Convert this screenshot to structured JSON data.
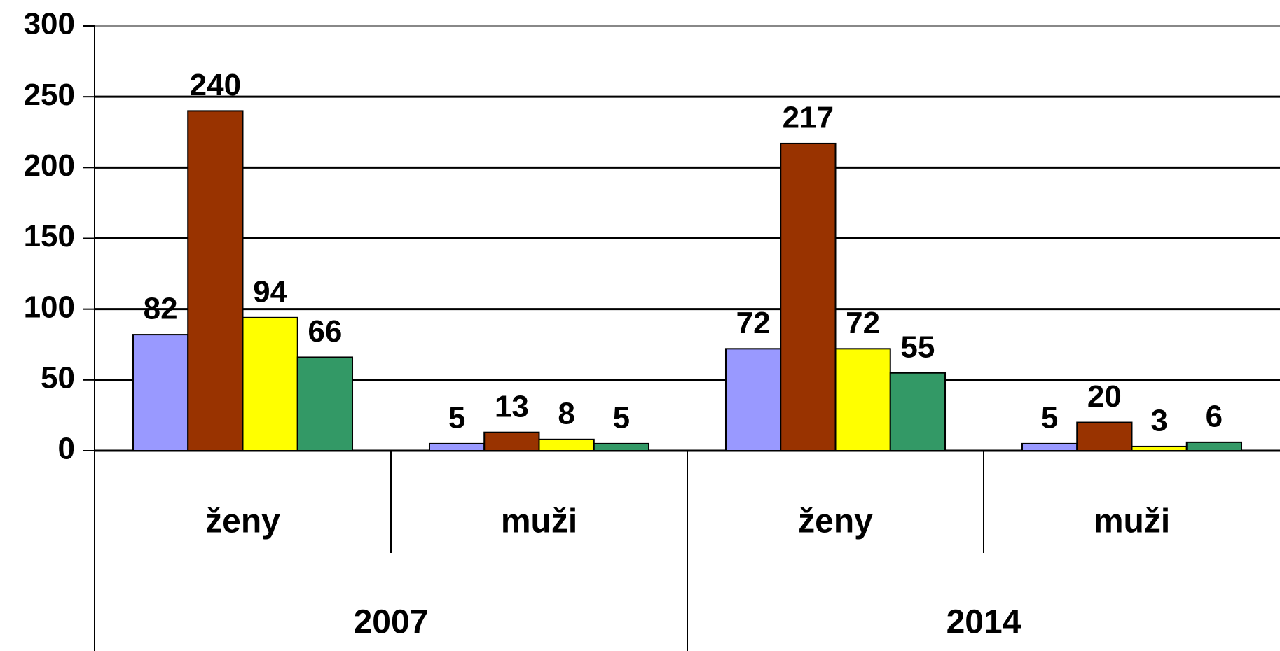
{
  "chart_data": {
    "type": "bar",
    "categories": [
      "ženy",
      "muži",
      "ženy",
      "muži"
    ],
    "groups": [
      "2007",
      "2014"
    ],
    "series": [
      {
        "color": "#9999ff",
        "values": [
          82,
          5,
          72,
          5
        ]
      },
      {
        "color": "#993300",
        "values": [
          240,
          13,
          217,
          20
        ]
      },
      {
        "color": "#ffff00",
        "values": [
          94,
          8,
          72,
          3
        ]
      },
      {
        "color": "#339966",
        "values": [
          66,
          5,
          55,
          6
        ]
      }
    ],
    "ylim": [
      0,
      300
    ],
    "yticks": [
      0,
      50,
      100,
      150,
      200,
      250,
      300
    ],
    "grid": true
  }
}
